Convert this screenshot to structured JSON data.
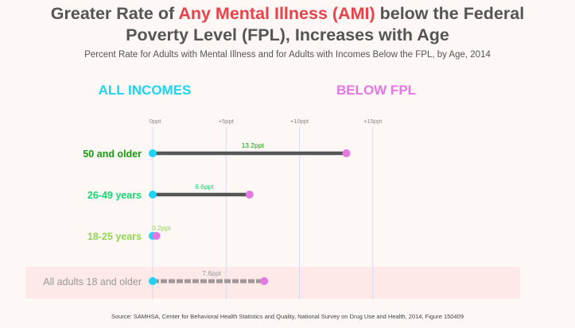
{
  "title": {
    "part1": "Greater Rate",
    "part2": " of ",
    "part3": "Any Mental Illness (AMI)",
    "part4": " below the Federal",
    "part5": "Poverty Level",
    "part6": " (FPL), Increases with Age"
  },
  "subtitle": "Percent Rate for Adults with Mental Illness and for Adults with Incomes Below the FPL, by Age, 2014",
  "source": "Source: SAMHSA, Center for Behavioral Health Statistics and Quality, National Survey on Drug Use and Health, 2014, Figure 150409",
  "colors": {
    "all_incomes": "#1ed4f5",
    "below_fpl": "#e577e2",
    "bar": "#555555",
    "bar_total": "#a09898",
    "grid": "#dadcf2",
    "highlight_row": "#fde9e7"
  },
  "chart_data": {
    "type": "dumbbell",
    "legend": {
      "all_incomes": "ALL INCOMES",
      "below_fpl": "BELOW FPL"
    },
    "x_ticks": [
      "0ppt",
      "+5ppt",
      "+10ppt",
      "+15ppt"
    ],
    "x_tick_values": [
      0,
      5,
      10,
      15
    ],
    "xlim": [
      0,
      15
    ],
    "rows": [
      {
        "label": "50 and older",
        "value": 13.2,
        "value_label": "13.2ppt",
        "label_color": "#1a9a0f",
        "value_color": "#1a9a0f",
        "total": false
      },
      {
        "label": "26-49 years",
        "value": 6.6,
        "value_label": "6.6ppt",
        "label_color": "#13d872",
        "value_color": "#13d872",
        "total": false
      },
      {
        "label": "18-25 years",
        "value": 0.2,
        "value_label": "0.2ppt",
        "label_color": "#93d655",
        "value_color": "#93d655",
        "total": false
      },
      {
        "label": "All adults 18 and older",
        "value": 7.6,
        "value_label": "7.6ppt",
        "label_color": "#999999",
        "value_color": "#999999",
        "total": true
      }
    ]
  }
}
